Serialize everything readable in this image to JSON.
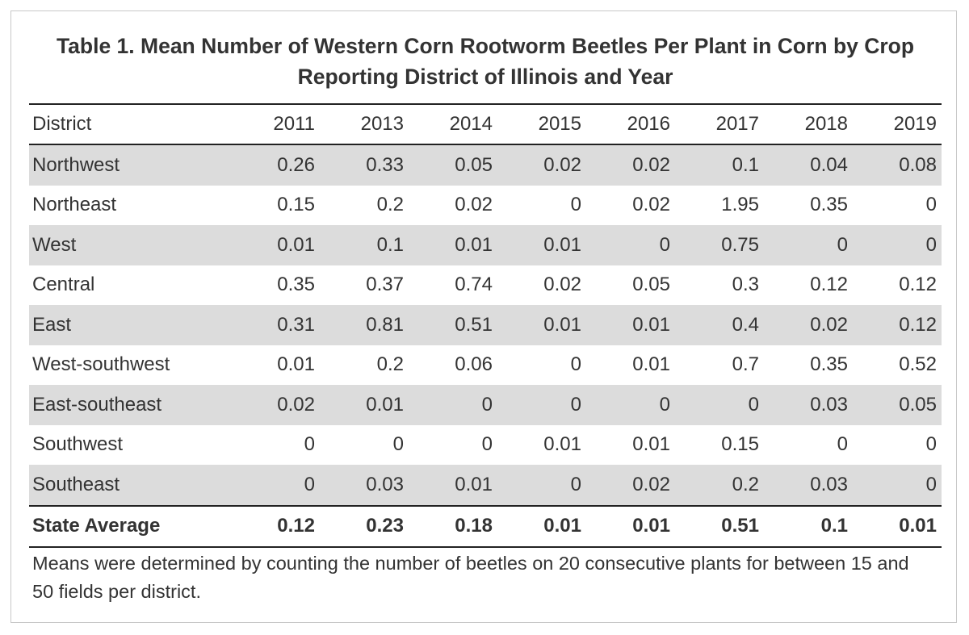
{
  "title": "Table 1. Mean Number of Western Corn Rootworm Beetles Per Plant in Corn by Crop Reporting District of Illinois and Year",
  "table": {
    "district_header": "District",
    "years": [
      "2011",
      "2013",
      "2014",
      "2015",
      "2016",
      "2017",
      "2018",
      "2019"
    ],
    "rows": [
      {
        "district": "Northwest",
        "values": [
          "0.26",
          "0.33",
          "0.05",
          "0.02",
          "0.02",
          "0.1",
          "0.04",
          "0.08"
        ]
      },
      {
        "district": "Northeast",
        "values": [
          "0.15",
          "0.2",
          "0.02",
          "0",
          "0.02",
          "1.95",
          "0.35",
          "0"
        ]
      },
      {
        "district": "West",
        "values": [
          "0.01",
          "0.1",
          "0.01",
          "0.01",
          "0",
          "0.75",
          "0",
          "0"
        ]
      },
      {
        "district": "Central",
        "values": [
          "0.35",
          "0.37",
          "0.74",
          "0.02",
          "0.05",
          "0.3",
          "0.12",
          "0.12"
        ]
      },
      {
        "district": "East",
        "values": [
          "0.31",
          "0.81",
          "0.51",
          "0.01",
          "0.01",
          "0.4",
          "0.02",
          "0.12"
        ]
      },
      {
        "district": "West-southwest",
        "values": [
          "0.01",
          "0.2",
          "0.06",
          "0",
          "0.01",
          "0.7",
          "0.35",
          "0.52"
        ]
      },
      {
        "district": "East-southeast",
        "values": [
          "0.02",
          "0.01",
          "0",
          "0",
          "0",
          "0",
          "0.03",
          "0.05"
        ]
      },
      {
        "district": "Southwest",
        "values": [
          "0",
          "0",
          "0",
          "0.01",
          "0.01",
          "0.15",
          "0",
          "0"
        ]
      },
      {
        "district": "Southeast",
        "values": [
          "0",
          "0.03",
          "0.01",
          "0",
          "0.02",
          "0.2",
          "0.03",
          "0"
        ]
      }
    ],
    "state_average": {
      "label": "State Average",
      "values": [
        "0.12",
        "0.23",
        "0.18",
        "0.01",
        "0.01",
        "0.51",
        "0.1",
        "0.01"
      ]
    }
  },
  "note": "Means were determined by counting the number of beetles on 20 consecutive plants for between 15 and 50 fields per district.",
  "colors": {
    "shaded_row": "#dcdcdc",
    "rule": "#222222",
    "text": "#333333",
    "frame_border": "#c8c8c8"
  }
}
